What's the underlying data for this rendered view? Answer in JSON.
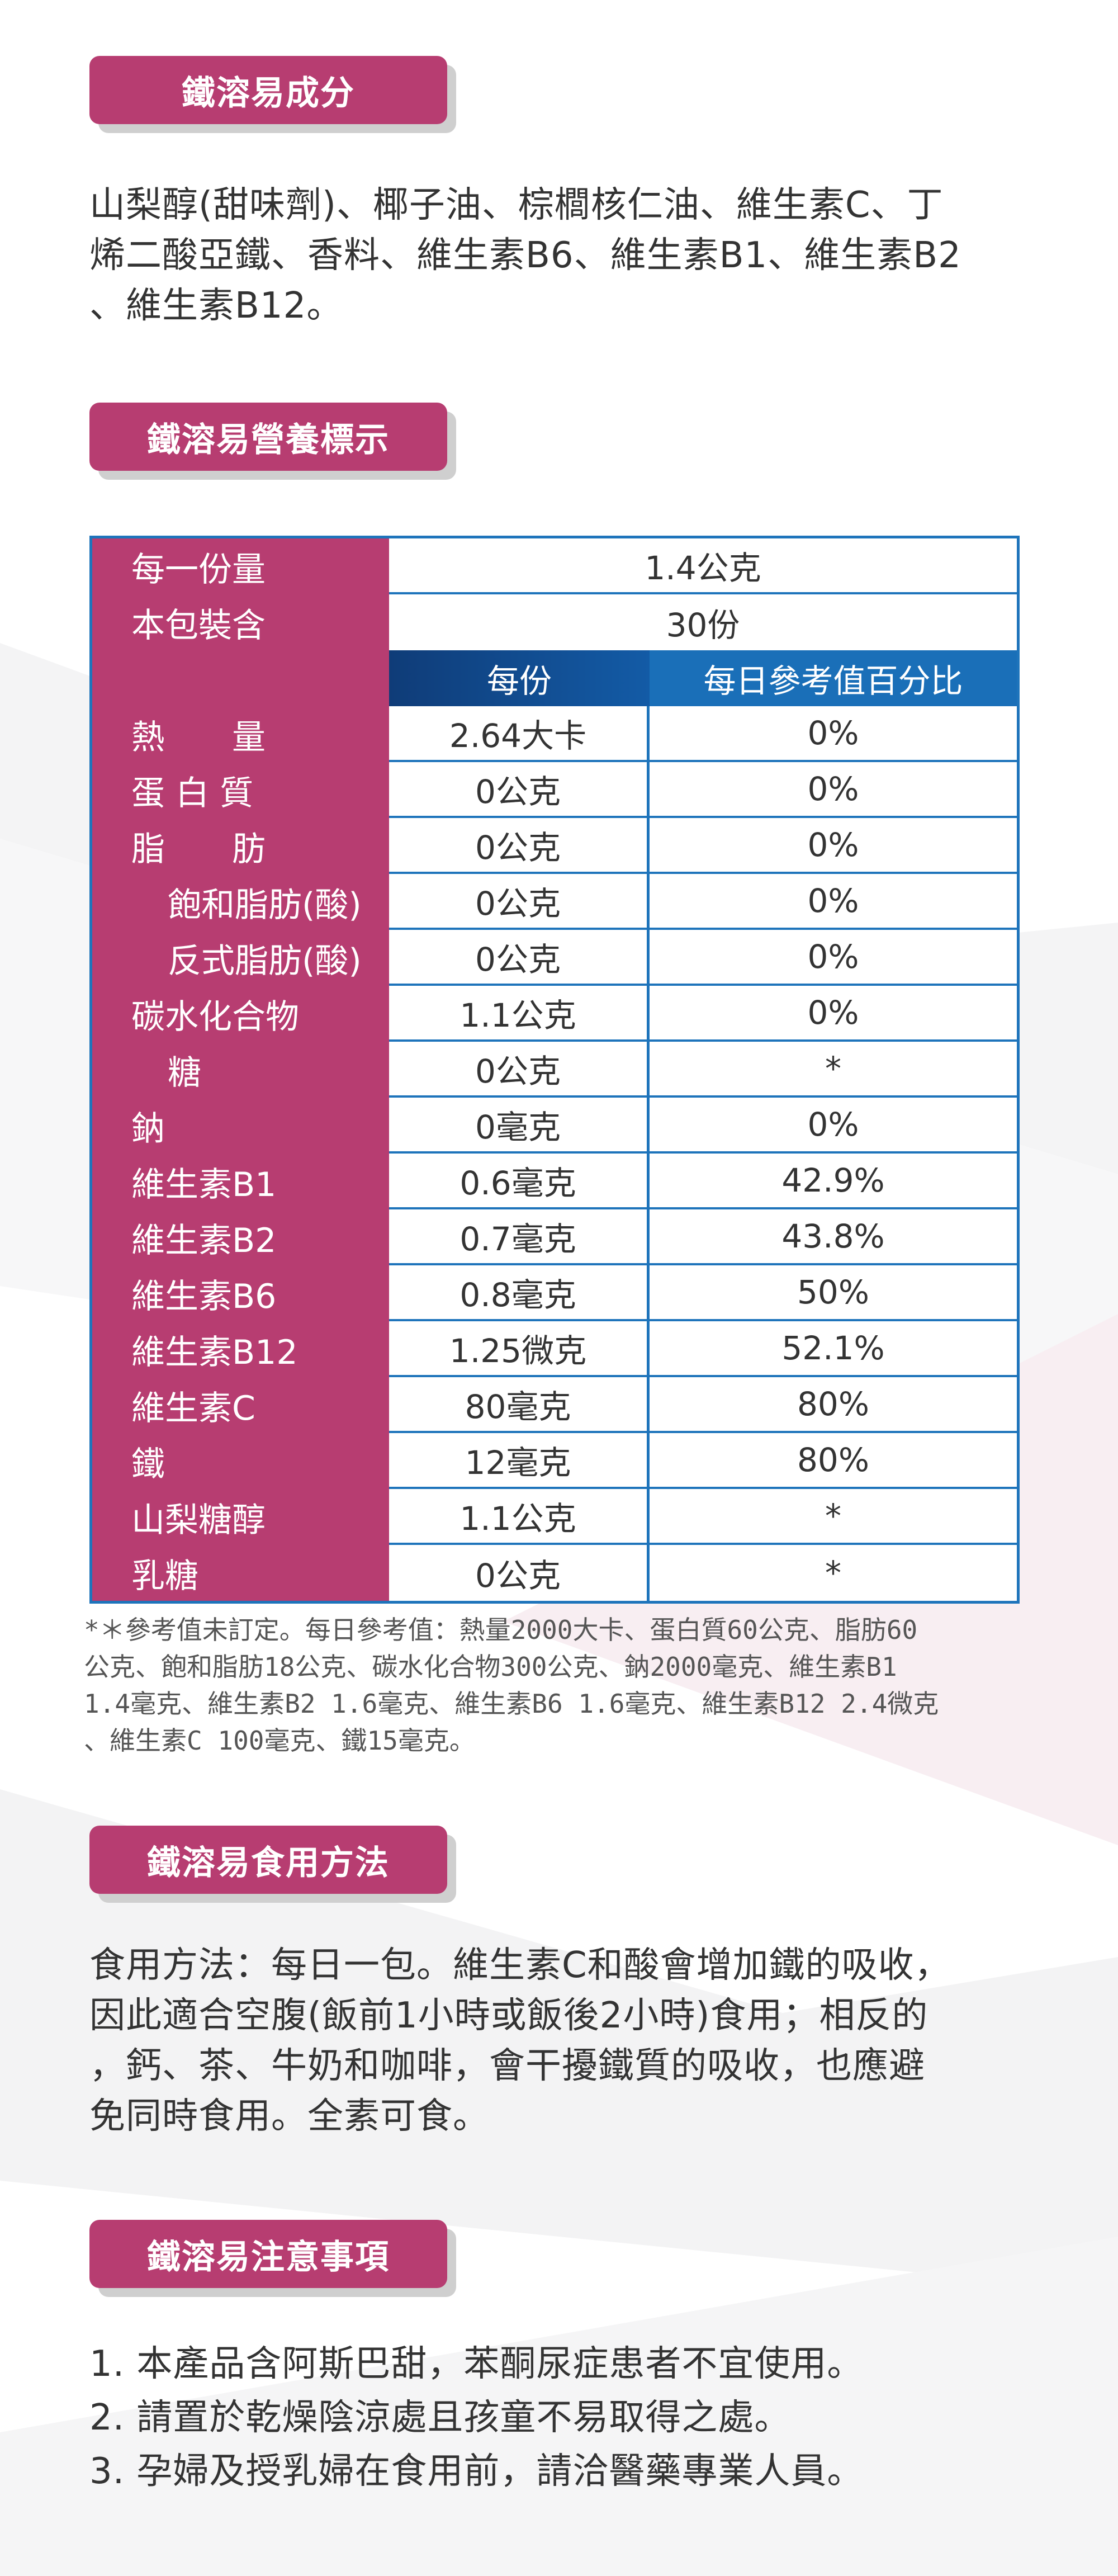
{
  "ingredients": {
    "title": "鐵溶易成分",
    "lines": [
      "山梨醇(甜味劑)、椰子油、棕櫚核仁油、維生素C、丁",
      "烯二酸亞鐵、香料、維生素B6、維生素B1、維生素B2",
      "、維生素B12。"
    ]
  },
  "nutrition": {
    "title": "鐵溶易營養標示",
    "serving_label": "每一份量",
    "serving_value": "1.4公克",
    "package_label": "本包裝含",
    "package_value": "30份",
    "col_per_serving": "每份",
    "col_daily": "每日參考值百分比",
    "rows": [
      {
        "label": "熱　　量",
        "value": "2.64大卡",
        "daily": "0%"
      },
      {
        "label": "蛋 白 質",
        "value": "0公克",
        "daily": "0%"
      },
      {
        "label": "脂　　肪",
        "value": "0公克",
        "daily": "0%"
      },
      {
        "label": "飽和脂肪(酸)",
        "value": "0公克",
        "daily": "0%"
      },
      {
        "label": "反式脂肪(酸)",
        "value": "0公克",
        "daily": "0%"
      },
      {
        "label": "碳水化合物",
        "value": "1.1公克",
        "daily": "0%"
      },
      {
        "label": "糖",
        "value": "0公克",
        "daily": "*"
      },
      {
        "label": "鈉",
        "value": "0毫克",
        "daily": "0%"
      },
      {
        "label": "維生素B1",
        "value": "0.6毫克",
        "daily": "42.9%"
      },
      {
        "label": "維生素B2",
        "value": "0.7毫克",
        "daily": "43.8%"
      },
      {
        "label": "維生素B6",
        "value": "0.8毫克",
        "daily": "50%"
      },
      {
        "label": "維生素B12",
        "value": "1.25微克",
        "daily": "52.1%"
      },
      {
        "label": "維生素C",
        "value": "80毫克",
        "daily": "80%"
      },
      {
        "label": "鐵",
        "value": "12毫克",
        "daily": "80%"
      },
      {
        "label": "山梨糖醇",
        "value": "1.1公克",
        "daily": "*"
      },
      {
        "label": "乳糖",
        "value": "0公克",
        "daily": "*"
      }
    ],
    "footnote": [
      "*＊參考值未訂定。每日參考值：熱量2000大卡、蛋白質60公克、脂肪60",
      "公克、飽和脂肪18公克、碳水化合物300公克、鈉2000毫克、維生素B1",
      "1.4毫克、維生素B2 1.6毫克、維生素B6 1.6毫克、維生素B12 2.4微克",
      "、維生素C 100毫克、鐵15毫克。"
    ]
  },
  "usage": {
    "title": "鐵溶易食用方法",
    "lines": [
      "食用方法：每日一包。維生素C和酸會增加鐵的吸收，",
      "因此適合空腹(飯前1小時或飯後2小時)食用；相反的",
      "，鈣、茶、牛奶和咖啡，會干擾鐵質的吸收，也應避",
      "免同時食用。全素可食。"
    ]
  },
  "caution": {
    "title": "鐵溶易注意事項",
    "items": [
      "1. 本產品含阿斯巴甜，苯酮尿症患者不宜使用。",
      "2. 請置於乾燥陰涼處且孩童不易取得之處。",
      "3. 孕婦及授乳婦在食用前，請洽醫藥專業人員。"
    ]
  },
  "colors": {
    "accent": "#b73d71",
    "table_border": "#1e74bb",
    "header_blue": "#1a6fb8",
    "shadow": "#cfcfcf"
  }
}
